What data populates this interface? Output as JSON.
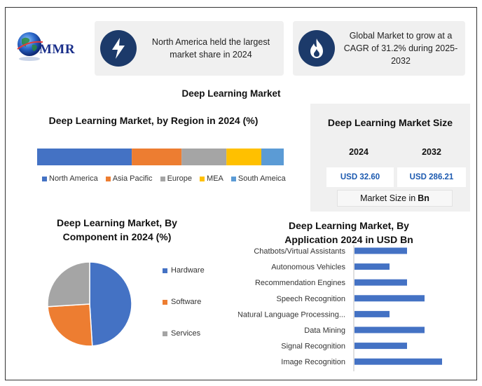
{
  "logo": {
    "text": "MMR"
  },
  "info_cards": [
    {
      "icon": "lightning-bolt-icon",
      "text": "North America held the largest market share in 2024"
    },
    {
      "icon": "flame-icon",
      "text": "Global Market to grow at a CAGR of 31.2% during 2025-2032"
    }
  ],
  "main_title": "Deep Learning Market",
  "market_size": {
    "title": "Deep Learning Market Size",
    "year_1": "2024",
    "year_2": "2032",
    "value_1": "USD 32.60",
    "value_2": "USD 286.21",
    "unit_prefix": "Market Size in",
    "unit_bold": "Bn"
  },
  "colors": {
    "blue": "#4472c4",
    "orange": "#ed7d31",
    "gray": "#a5a5a5",
    "yellow": "#ffc000",
    "light_blue": "#5b9bd5",
    "card_icon_bg": "#1c3a6a",
    "value_text": "#1c5ab0"
  },
  "chart_data": [
    {
      "type": "bar",
      "orientation": "horizontal-stacked",
      "title": "Deep Learning Market, by Region in 2024 (%)",
      "categories": [
        "North America",
        "Asia Pacific",
        "Europe",
        "MEA",
        "South Ameica"
      ],
      "values": [
        38,
        20,
        18,
        14,
        9
      ],
      "colors": [
        "#4472c4",
        "#ed7d31",
        "#a5a5a5",
        "#ffc000",
        "#5b9bd5"
      ],
      "legend": "bottom"
    },
    {
      "type": "pie",
      "title": "Deep Learning Market, By Component in 2024 (%)",
      "categories": [
        "Hardware",
        "Software",
        "Services"
      ],
      "values": [
        49,
        25,
        26
      ],
      "colors": [
        "#4472c4",
        "#ed7d31",
        "#a5a5a5"
      ],
      "legend": "right"
    },
    {
      "type": "bar",
      "orientation": "horizontal",
      "title": "Deep Learning Market, By Application 2024 in USD Bn",
      "categories": [
        "Chatbots/Virtual Assistants",
        "Autonomous Vehicles",
        "Recommendation Engines",
        "Speech Recognition",
        "Natural Language Processing...",
        "Data Mining",
        "Signal Recognition",
        "Image Recognition"
      ],
      "values": [
        3,
        2,
        3,
        4,
        2,
        4,
        3,
        5
      ],
      "xlim": [
        0,
        6
      ],
      "color": "#4472c4",
      "grid": false
    }
  ]
}
